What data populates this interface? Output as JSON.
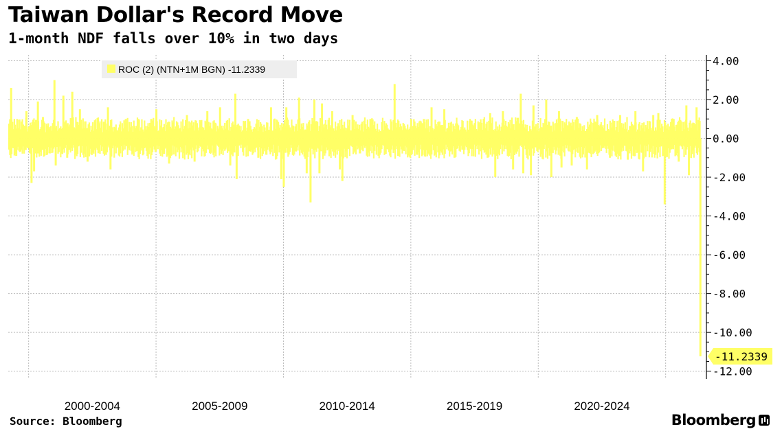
{
  "title": "Taiwan Dollar's Record Move",
  "subtitle": "1-month NDF falls over 10% in two days",
  "source": "Source: Bloomberg",
  "brand": "Bloomberg",
  "chart_data": {
    "type": "bar",
    "title": "",
    "xlabel": "",
    "ylabel": "",
    "series": [
      {
        "name": "ROC (2) (NTN+1M BGN) -11.2339",
        "color": "#ffff66",
        "last_value": -11.2339,
        "last_value_label": "-11.2339",
        "x_range": [
          1998.2,
          2025.35
        ],
        "peaks": [
          {
            "x": 1998.3,
            "value": 2.6
          },
          {
            "x": 1998.5,
            "value": -0.9
          },
          {
            "x": 1998.9,
            "value": 1.4
          },
          {
            "x": 1999.2,
            "value": -1.7
          },
          {
            "x": 1999.35,
            "value": 1.9
          },
          {
            "x": 1999.1,
            "value": -2.3
          },
          {
            "x": 1999.55,
            "value": 1.1
          },
          {
            "x": 2000.0,
            "value": 3.0
          },
          {
            "x": 2000.05,
            "value": -1.4
          },
          {
            "x": 2000.35,
            "value": 2.2
          },
          {
            "x": 2000.5,
            "value": -1.0
          },
          {
            "x": 2000.7,
            "value": 2.4
          },
          {
            "x": 2001.0,
            "value": 1.5
          },
          {
            "x": 2001.3,
            "value": -1.2
          },
          {
            "x": 2001.7,
            "value": 0.9
          },
          {
            "x": 2002.1,
            "value": 1.6
          },
          {
            "x": 2002.2,
            "value": -1.6
          },
          {
            "x": 2002.8,
            "value": 1.0
          },
          {
            "x": 2003.3,
            "value": 1.0
          },
          {
            "x": 2003.8,
            "value": 1.0
          },
          {
            "x": 2004.0,
            "value": 1.5
          },
          {
            "x": 2004.3,
            "value": -0.8
          },
          {
            "x": 2004.5,
            "value": -1.3
          },
          {
            "x": 2005.2,
            "value": 1.2
          },
          {
            "x": 2005.5,
            "value": -1.2
          },
          {
            "x": 2006.0,
            "value": 1.4
          },
          {
            "x": 2006.5,
            "value": 1.6
          },
          {
            "x": 2006.9,
            "value": -1.4
          },
          {
            "x": 2007.1,
            "value": 2.3
          },
          {
            "x": 2007.15,
            "value": -2.1
          },
          {
            "x": 2007.6,
            "value": 1.0
          },
          {
            "x": 2008.0,
            "value": -1.0
          },
          {
            "x": 2008.5,
            "value": 1.6
          },
          {
            "x": 2008.9,
            "value": -2.1
          },
          {
            "x": 2009.0,
            "value": -2.5
          },
          {
            "x": 2009.1,
            "value": 1.6
          },
          {
            "x": 2009.6,
            "value": 2.1
          },
          {
            "x": 2009.9,
            "value": -1.8
          },
          {
            "x": 2010.05,
            "value": -3.3
          },
          {
            "x": 2010.2,
            "value": 2.0
          },
          {
            "x": 2010.4,
            "value": -1.8
          },
          {
            "x": 2010.5,
            "value": 1.8
          },
          {
            "x": 2010.9,
            "value": 1.4
          },
          {
            "x": 2011.2,
            "value": -1.6
          },
          {
            "x": 2011.3,
            "value": -2.2
          },
          {
            "x": 2011.7,
            "value": 1.2
          },
          {
            "x": 2012.4,
            "value": 1.0
          },
          {
            "x": 2013.0,
            "value": -0.8
          },
          {
            "x": 2013.35,
            "value": 2.8
          },
          {
            "x": 2013.5,
            "value": -0.9
          },
          {
            "x": 2014.0,
            "value": 1.0
          },
          {
            "x": 2014.5,
            "value": 1.0
          },
          {
            "x": 2014.8,
            "value": 1.6
          },
          {
            "x": 2015.3,
            "value": 1.5
          },
          {
            "x": 2015.7,
            "value": -1.0
          },
          {
            "x": 2016.3,
            "value": 0.9
          },
          {
            "x": 2017.0,
            "value": -1.0
          },
          {
            "x": 2017.1,
            "value": 1.3
          },
          {
            "x": 2017.3,
            "value": -2.0
          },
          {
            "x": 2017.6,
            "value": 1.4
          },
          {
            "x": 2018.0,
            "value": -1.6
          },
          {
            "x": 2018.3,
            "value": 2.3
          },
          {
            "x": 2018.4,
            "value": -1.8
          },
          {
            "x": 2018.7,
            "value": -1.9
          },
          {
            "x": 2018.8,
            "value": 1.7
          },
          {
            "x": 2019.3,
            "value": 2.0
          },
          {
            "x": 2019.5,
            "value": -2.0
          },
          {
            "x": 2019.8,
            "value": 1.4
          },
          {
            "x": 2019.9,
            "value": -1.5
          },
          {
            "x": 2020.3,
            "value": -1.4
          },
          {
            "x": 2020.5,
            "value": 1.1
          },
          {
            "x": 2020.9,
            "value": -1.6
          },
          {
            "x": 2021.3,
            "value": 1.2
          },
          {
            "x": 2021.8,
            "value": -1.0
          },
          {
            "x": 2022.2,
            "value": 1.2
          },
          {
            "x": 2022.5,
            "value": -1.1
          },
          {
            "x": 2022.8,
            "value": 1.4
          },
          {
            "x": 2023.1,
            "value": -1.7
          },
          {
            "x": 2023.5,
            "value": 1.2
          },
          {
            "x": 2023.7,
            "value": 1.3
          },
          {
            "x": 2023.95,
            "value": -3.4
          },
          {
            "x": 2024.3,
            "value": 1.0
          },
          {
            "x": 2024.5,
            "value": -1.2
          },
          {
            "x": 2024.8,
            "value": 1.7
          },
          {
            "x": 2024.9,
            "value": -1.9
          },
          {
            "x": 2025.2,
            "value": 1.6
          },
          {
            "x": 2025.32,
            "value": 0.9
          },
          {
            "x": 2025.34,
            "value": -1.9
          },
          {
            "x": 2025.35,
            "value": -11.2339
          }
        ]
      }
    ],
    "x_tick_labels": [
      "2000-2004",
      "2005-2009",
      "2010-2014",
      "2015-2019",
      "2020-2024"
    ],
    "y_ticks": [
      4,
      2,
      0,
      -2,
      -4,
      -6,
      -8,
      -10,
      -12
    ],
    "y_tick_labels": [
      "4.00",
      "2.00",
      "0.00",
      "-2.00",
      "-4.00",
      "-6.00",
      "-8.00",
      "-10.00",
      "-12.00"
    ],
    "ylim": [
      -12.4,
      4.3
    ],
    "grid": true,
    "legend": "top-left",
    "y_axis_side": "right"
  }
}
